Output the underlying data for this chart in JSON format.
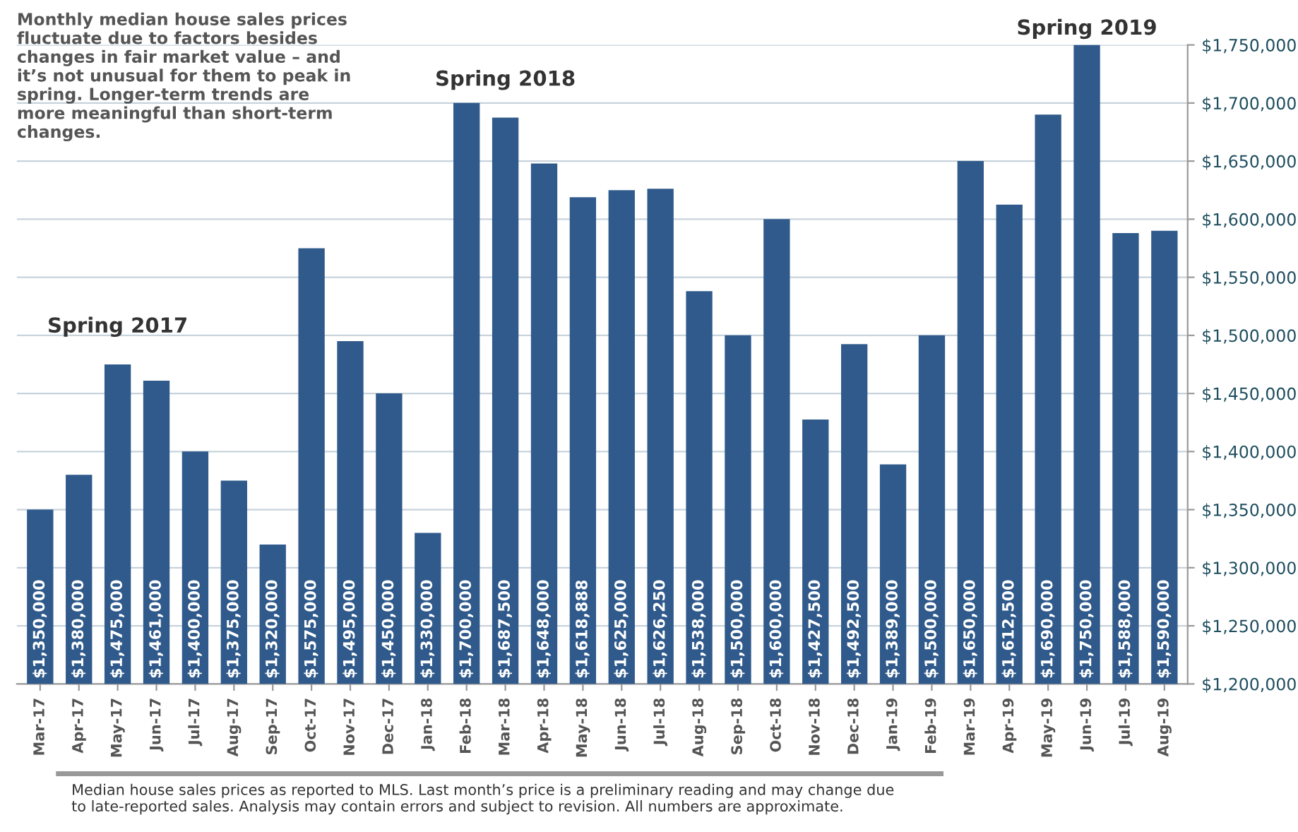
{
  "chart_data": {
    "type": "bar",
    "categories": [
      "Mar-17",
      "Apr-17",
      "May-17",
      "Jun-17",
      "Jul-17",
      "Aug-17",
      "Sep-17",
      "Oct-17",
      "Nov-17",
      "Dec-17",
      "Jan-18",
      "Feb-18",
      "Mar-18",
      "Apr-18",
      "May-18",
      "Jun-18",
      "Jul-18",
      "Aug-18",
      "Sep-18",
      "Oct-18",
      "Nov-18",
      "Dec-18",
      "Jan-19",
      "Feb-19",
      "Mar-19",
      "Apr-19",
      "May-19",
      "Jun-19",
      "Jul-19",
      "Aug-19"
    ],
    "values": [
      1350000,
      1380000,
      1475000,
      1461000,
      1400000,
      1375000,
      1320000,
      1575000,
      1495000,
      1450000,
      1330000,
      1700000,
      1687500,
      1648000,
      1618888,
      1625000,
      1626250,
      1538000,
      1500000,
      1600000,
      1427500,
      1492500,
      1389000,
      1500000,
      1650000,
      1612500,
      1690000,
      1750000,
      1588000,
      1590000
    ],
    "value_labels": [
      "$1,350,000",
      "$1,380,000",
      "$1,475,000",
      "$1,461,000",
      "$1,400,000",
      "$1,375,000",
      "$1,320,000",
      "$1,575,000",
      "$1,495,000",
      "$1,450,000",
      "$1,330,000",
      "$1,700,000",
      "$1,687,500",
      "$1,648,000",
      "$1,618,888",
      "$1,625,000",
      "$1,626,250",
      "$1,538,000",
      "$1,500,000",
      "$1,600,000",
      "$1,427,500",
      "$1,492,500",
      "$1,389,000",
      "$1,500,000",
      "$1,650,000",
      "$1,612,500",
      "$1,690,000",
      "$1,750,000",
      "$1,588,000",
      "$1,590,000"
    ],
    "color": "#2f5a8b",
    "ylim": [
      1200000,
      1750000
    ],
    "yticks": [
      {
        "value": 1200000,
        "label": "$1,200,000"
      },
      {
        "value": 1250000,
        "label": "$1,250,000"
      },
      {
        "value": 1300000,
        "label": "$1,300,000"
      },
      {
        "value": 1350000,
        "label": "$1,350,000"
      },
      {
        "value": 1400000,
        "label": "$1,400,000"
      },
      {
        "value": 1450000,
        "label": "$1,450,000"
      },
      {
        "value": 1500000,
        "label": "$1,500,000"
      },
      {
        "value": 1550000,
        "label": "$1,550,000"
      },
      {
        "value": 1600000,
        "label": "$1,600,000"
      },
      {
        "value": 1650000,
        "label": "$1,650,000"
      },
      {
        "value": 1700000,
        "label": "$1,700,000"
      },
      {
        "value": 1750000,
        "label": "$1,750,000"
      }
    ],
    "grid": "y",
    "annotations": [
      {
        "text": "Spring 2017",
        "x": "May-17",
        "y": 1475000
      },
      {
        "text": "Spring 2018",
        "x": "Mar-18",
        "y": 1687500
      },
      {
        "text": "Spring 2019",
        "x": "Jun-19",
        "y": 1750000
      },
      "Monthly median house sales prices fluctuate due to factors besides changes in fair market value – and it’s not unusual for them to peak in spring. Longer-term trends are more meaningful than short-term changes.",
      "Median house sales prices as reported to MLS. Last month’s price is a preliminary reading and may change due to late-reported sales. Analysis may contain errors and subject to revision. All numbers are approximate."
    ]
  }
}
